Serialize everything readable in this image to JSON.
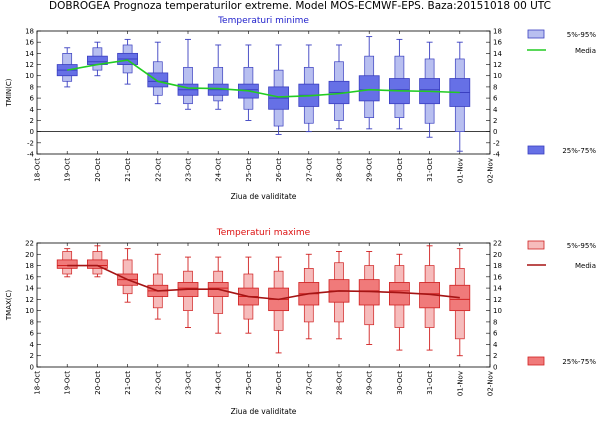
{
  "page_title": "DOBROGEA  Prognoza temperaturilor extreme.  Model MOS-ECMWF-EPS. Baza:20151018 00 UTC",
  "chart_data": [
    {
      "type": "box",
      "title": "Temperaturi minime",
      "title_color": "#2222cc",
      "xlabel": "Ziua de validitate",
      "ylabel": "TMIN(C)",
      "ylim": [
        -4,
        18
      ],
      "yticks": [
        -4,
        -2,
        0,
        2,
        4,
        6,
        8,
        10,
        12,
        14,
        16,
        18
      ],
      "x_range": [
        "18-Oct",
        "02-Nov"
      ],
      "x_ticks": [
        "18-Oct",
        "19-Oct",
        "20-Oct",
        "21-Oct",
        "22-Oct",
        "23-Oct",
        "24-Oct",
        "25-Oct",
        "26-Oct",
        "27-Oct",
        "28-Oct",
        "29-Oct",
        "30-Oct",
        "31-Oct",
        "01-Nov",
        "02-Nov"
      ],
      "legend": {
        "p5_95": "5%-95%",
        "media": "Media",
        "p25_75": "25%-75%"
      },
      "colors": {
        "light": "#b8bff0",
        "dark": "#6670e6",
        "edge": "#3a3fc0",
        "whisker": "#3a3fc0",
        "line": "#22cc22"
      },
      "boxes": [
        {
          "day": "19-Oct",
          "min": 8,
          "p5": 9,
          "p25": 10,
          "median": 11,
          "p75": 12,
          "p95": 14,
          "max": 15
        },
        {
          "day": "20-Oct",
          "min": 10,
          "p5": 11,
          "p25": 12,
          "median": 12.5,
          "p75": 13.5,
          "p95": 15,
          "max": 16
        },
        {
          "day": "21-Oct",
          "min": 8.5,
          "p5": 10.5,
          "p25": 12,
          "median": 13,
          "p75": 14,
          "p95": 15.5,
          "max": 16.5
        },
        {
          "day": "22-Oct",
          "min": 5,
          "p5": 6.5,
          "p25": 8,
          "median": 9,
          "p75": 10.5,
          "p95": 12.5,
          "max": 16
        },
        {
          "day": "23-Oct",
          "min": 4,
          "p5": 5,
          "p25": 6.5,
          "median": 7.5,
          "p75": 8.5,
          "p95": 11.5,
          "max": 16.5
        },
        {
          "day": "24-Oct",
          "min": 4,
          "p5": 5.5,
          "p25": 6.5,
          "median": 7.5,
          "p75": 8.5,
          "p95": 11.5,
          "max": 15.5
        },
        {
          "day": "25-Oct",
          "min": 2,
          "p5": 4,
          "p25": 6,
          "median": 7.5,
          "p75": 8.5,
          "p95": 11.5,
          "max": 15.5
        },
        {
          "day": "26-Oct",
          "min": -0.5,
          "p5": 1,
          "p25": 4,
          "median": 6,
          "p75": 8,
          "p95": 11,
          "max": 15.5
        },
        {
          "day": "27-Oct",
          "min": 0,
          "p5": 1.5,
          "p25": 4.5,
          "median": 6.5,
          "p75": 8.5,
          "p95": 11.5,
          "max": 15.5
        },
        {
          "day": "28-Oct",
          "min": 0.5,
          "p5": 2,
          "p25": 5,
          "median": 7,
          "p75": 9,
          "p95": 12.5,
          "max": 15.5
        },
        {
          "day": "29-Oct",
          "min": 0.5,
          "p5": 2.5,
          "p25": 5.5,
          "median": 7.5,
          "p75": 10,
          "p95": 13.5,
          "max": 17
        },
        {
          "day": "30-Oct",
          "min": 0.5,
          "p5": 2.5,
          "p25": 5,
          "median": 7.5,
          "p75": 9.5,
          "p95": 13.5,
          "max": 16.5
        },
        {
          "day": "31-Oct",
          "min": -1,
          "p5": 1.5,
          "p25": 5,
          "median": 7.5,
          "p75": 9.5,
          "p95": 13,
          "max": 16
        },
        {
          "day": "01-Nov",
          "min": -3.5,
          "p5": 0,
          "p25": 4.5,
          "median": 7,
          "p75": 9.5,
          "p95": 13,
          "max": 16
        }
      ],
      "media": [
        11,
        12,
        12.8,
        9,
        7.8,
        7.7,
        7.3,
        6.2,
        6.4,
        6.8,
        7.5,
        7.3,
        7.2,
        7.0
      ]
    },
    {
      "type": "box",
      "title": "Temperaturi maxime",
      "title_color": "#dd1111",
      "xlabel": "Ziua de validitate",
      "ylabel": "TMAX(C)",
      "ylim": [
        0,
        22
      ],
      "yticks": [
        0,
        2,
        4,
        6,
        8,
        10,
        12,
        14,
        16,
        18,
        20,
        22
      ],
      "x_range": [
        "18-Oct",
        "02-Nov"
      ],
      "x_ticks": [
        "18-Oct",
        "19-Oct",
        "20-Oct",
        "21-Oct",
        "22-Oct",
        "23-Oct",
        "24-Oct",
        "25-Oct",
        "26-Oct",
        "27-Oct",
        "28-Oct",
        "29-Oct",
        "30-Oct",
        "31-Oct",
        "01-Nov",
        "02-Nov"
      ],
      "legend": {
        "p5_95": "5%-95%",
        "media": "Media",
        "p25_75": "25%-75%"
      },
      "colors": {
        "light": "#f6bcbc",
        "dark": "#f07a7a",
        "edge": "#d02020",
        "whisker": "#d02020",
        "line": "#a51414"
      },
      "boxes": [
        {
          "day": "19-Oct",
          "min": 16,
          "p5": 16.5,
          "p25": 17.5,
          "median": 18,
          "p75": 19,
          "p95": 20.5,
          "max": 21
        },
        {
          "day": "20-Oct",
          "min": 16,
          "p5": 16.5,
          "p25": 17.5,
          "median": 18,
          "p75": 19,
          "p95": 20.5,
          "max": 21.5
        },
        {
          "day": "21-Oct",
          "min": 11.5,
          "p5": 13,
          "p25": 14.5,
          "median": 15.5,
          "p75": 16.5,
          "p95": 19,
          "max": 21
        },
        {
          "day": "22-Oct",
          "min": 8.5,
          "p5": 10.5,
          "p25": 12.5,
          "median": 13.5,
          "p75": 14.5,
          "p95": 16.5,
          "max": 20
        },
        {
          "day": "23-Oct",
          "min": 7,
          "p5": 10,
          "p25": 12.5,
          "median": 14,
          "p75": 15,
          "p95": 17,
          "max": 19.5
        },
        {
          "day": "24-Oct",
          "min": 6,
          "p5": 9.5,
          "p25": 12.5,
          "median": 14,
          "p75": 15,
          "p95": 17,
          "max": 19.5
        },
        {
          "day": "25-Oct",
          "min": 6,
          "p5": 8.5,
          "p25": 11,
          "median": 12.5,
          "p75": 14,
          "p95": 16.5,
          "max": 19.5
        },
        {
          "day": "26-Oct",
          "min": 2.5,
          "p5": 6.5,
          "p25": 10,
          "median": 12,
          "p75": 14,
          "p95": 17,
          "max": 19.5
        },
        {
          "day": "27-Oct",
          "min": 5,
          "p5": 8,
          "p25": 11,
          "median": 13,
          "p75": 15,
          "p95": 17.5,
          "max": 20
        },
        {
          "day": "28-Oct",
          "min": 5,
          "p5": 8,
          "p25": 11.5,
          "median": 13.5,
          "p75": 15.5,
          "p95": 18.5,
          "max": 20.5
        },
        {
          "day": "29-Oct",
          "min": 4,
          "p5": 7.5,
          "p25": 11,
          "median": 13.5,
          "p75": 15.5,
          "p95": 18,
          "max": 20.5
        },
        {
          "day": "30-Oct",
          "min": 3,
          "p5": 7,
          "p25": 11,
          "median": 13.5,
          "p75": 15,
          "p95": 18,
          "max": 20
        },
        {
          "day": "31-Oct",
          "min": 3,
          "p5": 7,
          "p25": 10.5,
          "median": 13,
          "p75": 15,
          "p95": 18,
          "max": 21.5
        },
        {
          "day": "01-Nov",
          "min": 2,
          "p5": 5,
          "p25": 10,
          "median": 12,
          "p75": 14.5,
          "p95": 17.5,
          "max": 21
        }
      ],
      "media": [
        18,
        18,
        15.5,
        13.5,
        13.8,
        13.8,
        12.5,
        12.0,
        13.0,
        13.5,
        13.4,
        13.2,
        12.9,
        12.3
      ]
    }
  ]
}
